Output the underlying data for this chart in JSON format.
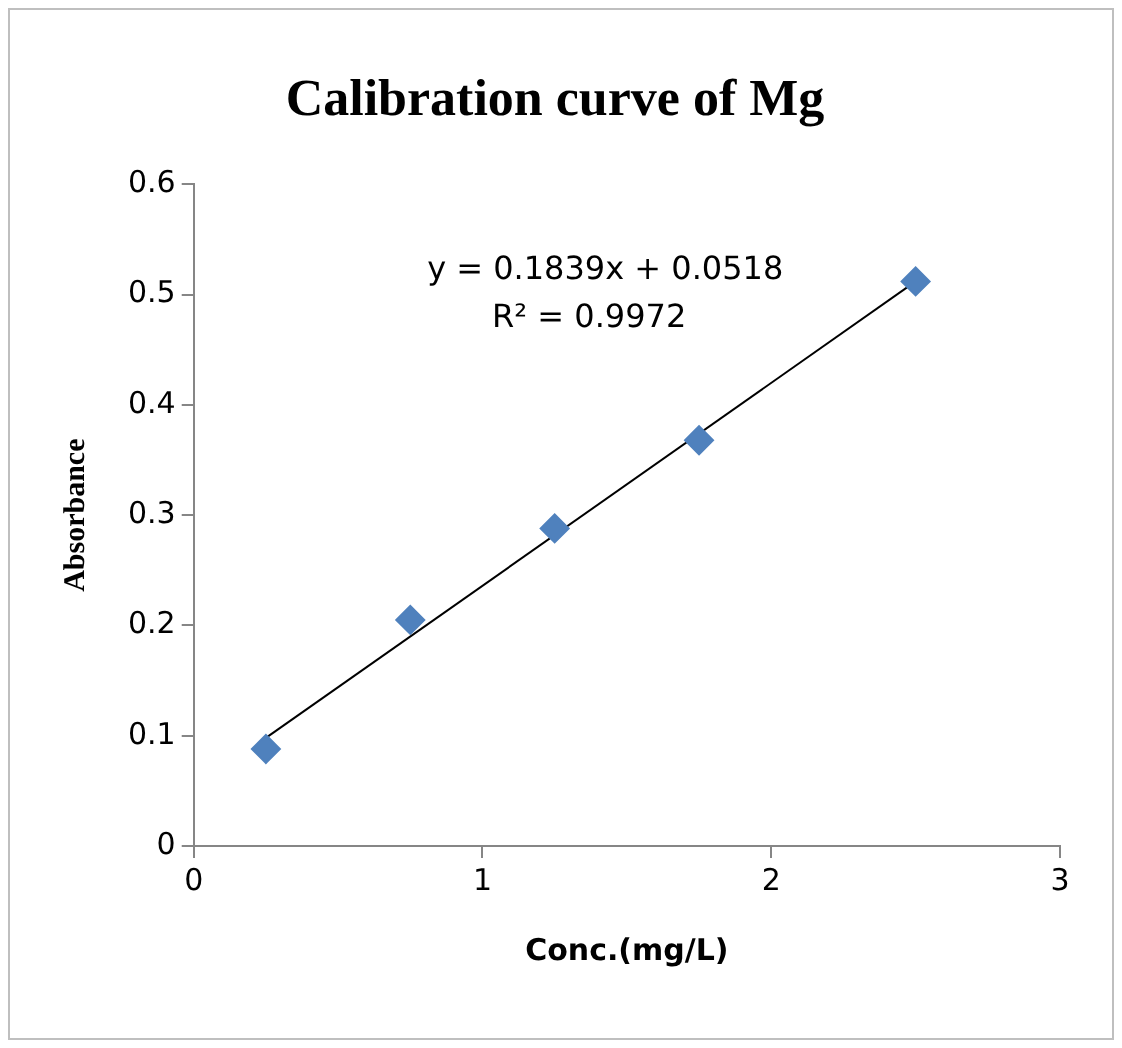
{
  "chart_data": {
    "type": "scatter",
    "title": "Calibration curve of Mg",
    "xlabel": "Conc.(mg/L)",
    "ylabel": "Absorbance",
    "annotations": [
      "y = 0.1839x + 0.0518",
      "R² = 0.9972"
    ],
    "x": [
      0.25,
      0.75,
      1.25,
      1.75,
      2.5
    ],
    "series": [
      {
        "type": "scatter",
        "color": "#4f81bd",
        "marker": "diamond",
        "values": [
          0.088,
          0.205,
          0.288,
          0.368,
          0.512
        ]
      },
      {
        "type": "line",
        "color": "#000000",
        "marker": "none",
        "x": [
          0.25,
          2.5
        ],
        "values": [
          0.098,
          0.512
        ]
      }
    ],
    "xlim": [
      0,
      3
    ],
    "xticks": [
      0,
      1,
      2,
      3
    ],
    "ylim": [
      0,
      0.6
    ],
    "yticks": [
      0,
      0.1,
      0.2,
      0.3,
      0.4,
      0.5,
      0.6
    ],
    "grid": false,
    "legend": false
  }
}
